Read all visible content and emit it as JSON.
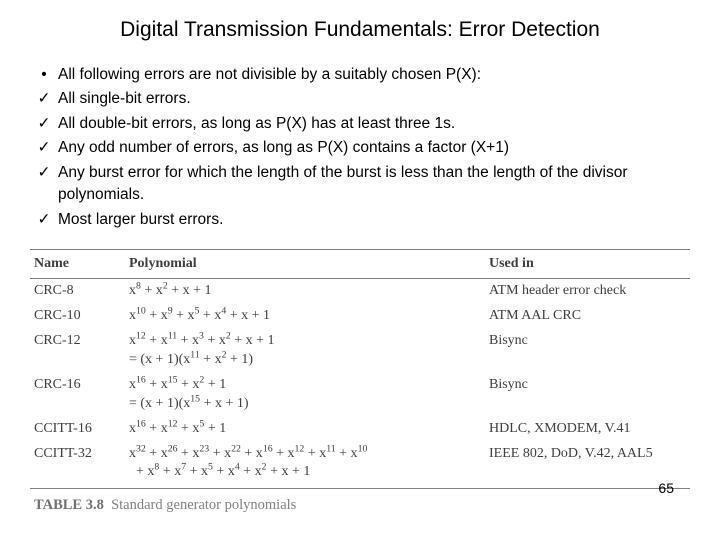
{
  "title": "Digital Transmission Fundamentals: Error Detection",
  "bullets": [
    {
      "mark": "•",
      "text": "All following errors are not divisible by a suitably chosen P(X):"
    },
    {
      "mark": "✓",
      "text": "All single-bit errors."
    },
    {
      "mark": "✓",
      "text": "All double-bit errors, as long as P(X) has at least three 1s."
    },
    {
      "mark": "✓",
      "text": "Any odd number of errors, as long as P(X) contains a factor (X+1)"
    },
    {
      "mark": "✓",
      "text": "Any burst error for which the length  of the burst is less than the length of the divisor polynomials."
    },
    {
      "mark": "✓",
      "text": "Most larger burst errors."
    }
  ],
  "table": {
    "columns": [
      "Name",
      "Polynomial",
      "Used in"
    ],
    "col_widths": [
      "95px",
      "360px",
      "auto"
    ],
    "header_border_color": "#808080",
    "font_family": "Times New Roman",
    "text_color": "#3d3d3d",
    "rows": [
      {
        "name": "CRC-8",
        "poly_html": "x<sup>8</sup> + x<sup>2</sup> + x + 1",
        "used": "ATM header error check"
      },
      {
        "name": "CRC-10",
        "poly_html": "x<sup>10</sup> + x<sup>9</sup> + x<sup>5</sup> + x<sup>4</sup> + x + 1",
        "used": "ATM AAL CRC"
      },
      {
        "name": "CRC-12",
        "poly_html": "x<sup>12</sup> + x<sup>11</sup> + x<sup>3</sup> + x<sup>2</sup> + x + 1<br>= (x + 1)(x<sup>11</sup> + x<sup>2</sup> + 1)",
        "used": "Bisync"
      },
      {
        "name": "CRC-16",
        "poly_html": "x<sup>16</sup> + x<sup>15</sup> + x<sup>2</sup> + 1<br>= (x + 1)(x<sup>15</sup> + x + 1)",
        "used": "Bisync"
      },
      {
        "name": "CCITT-16",
        "poly_html": "x<sup>16</sup> + x<sup>12</sup> + x<sup>5</sup> + 1",
        "used": "HDLC, XMODEM, V.41"
      },
      {
        "name": "CCITT-32",
        "poly_html": "x<sup>32</sup> + x<sup>26</sup> + x<sup>23</sup> + x<sup>22</sup> + x<sup>16</sup> + x<sup>12</sup> + x<sup>11</sup> + x<sup>10</sup><br>&nbsp;&nbsp;+ x<sup>8</sup> + x<sup>7</sup> + x<sup>5</sup> + x<sup>4</sup> + x<sup>2</sup> + x + 1",
        "used": "IEEE 802, DoD, V.42, AAL5"
      }
    ]
  },
  "caption_label": "TABLE 3.8",
  "caption_text": "Standard generator polynomials",
  "page_number": "65",
  "colors": {
    "background": "#ffffff",
    "text": "#000000",
    "table_text": "#3d3d3d",
    "border": "#808080",
    "caption": "#808080"
  }
}
